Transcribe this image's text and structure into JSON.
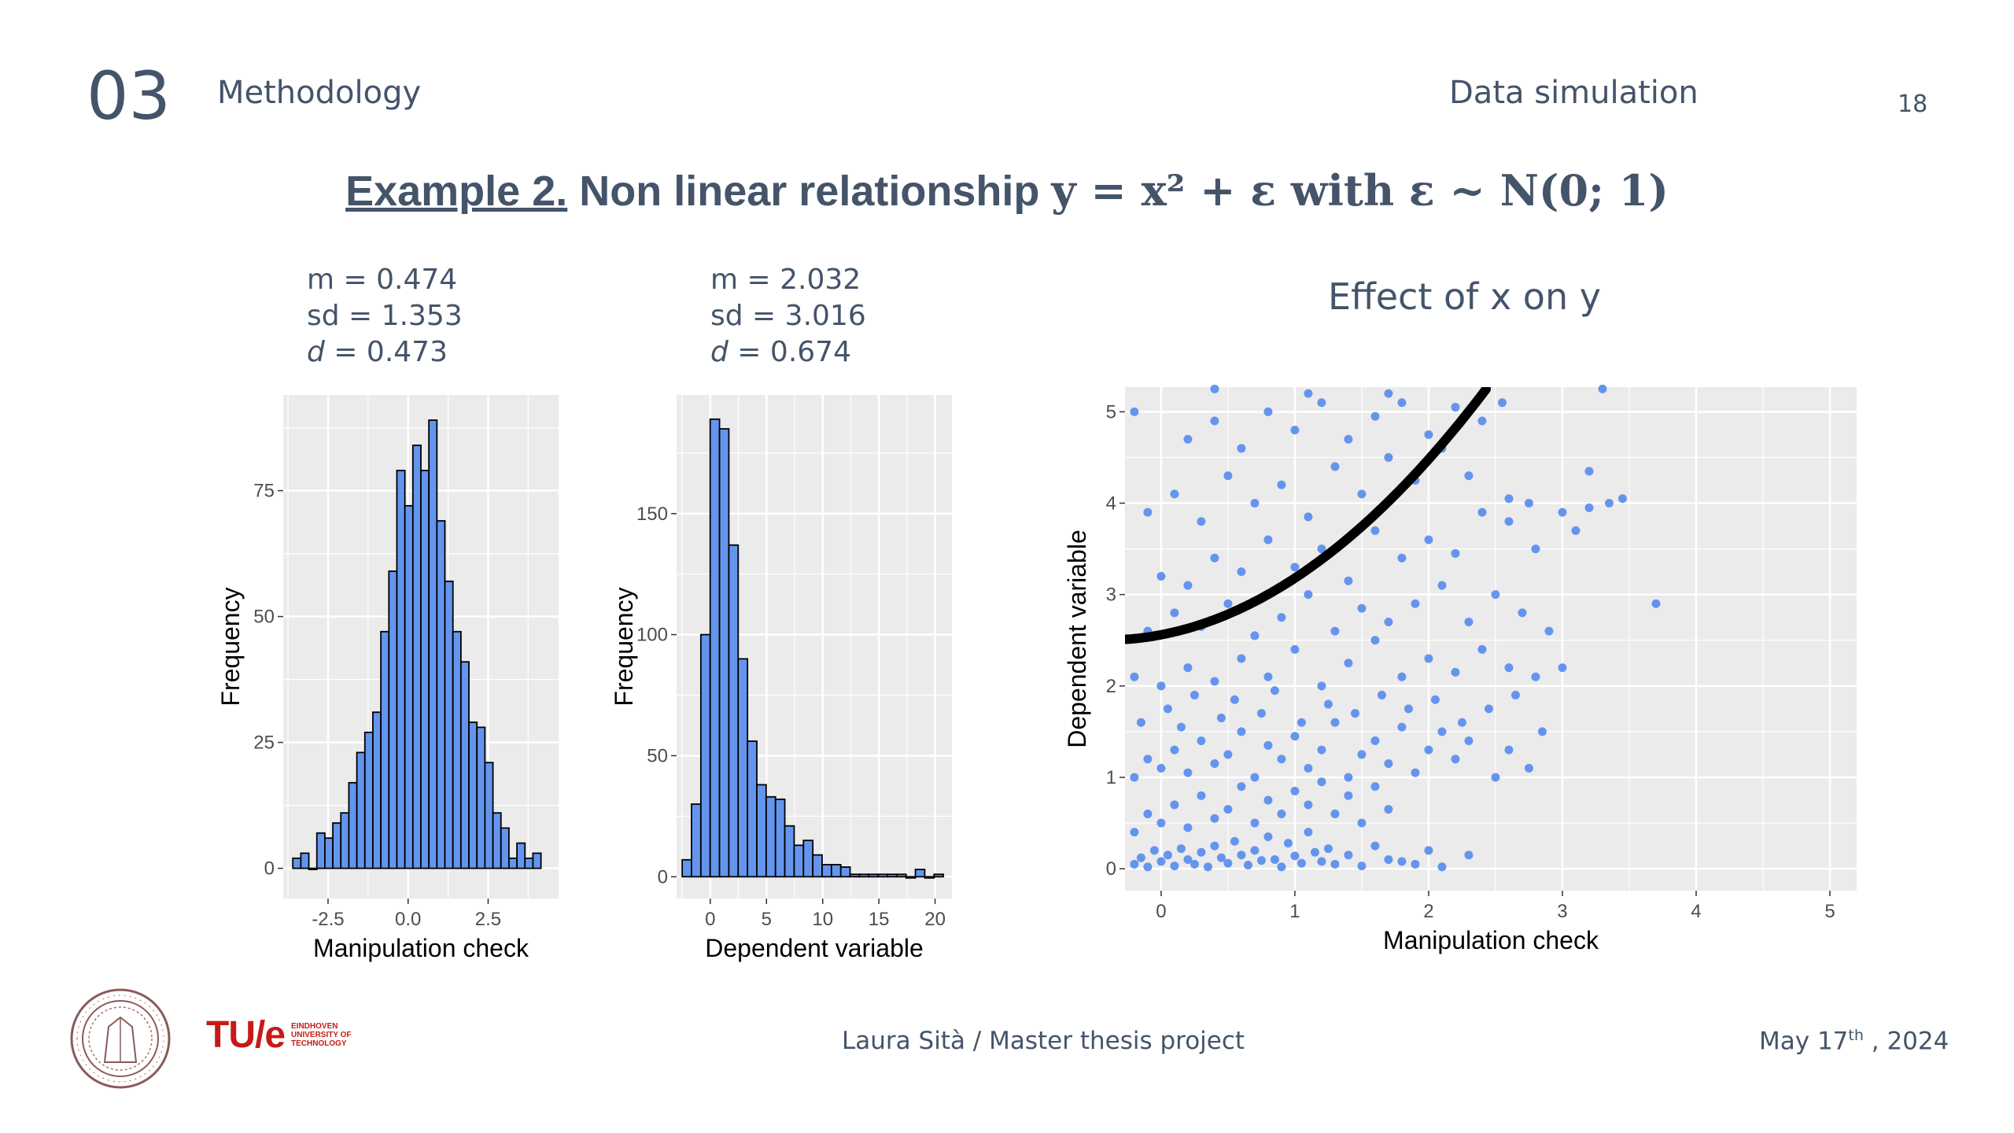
{
  "header": {
    "section_number": "03",
    "section_title": "Methodology",
    "subtitle": "Data simulation",
    "page_number": "18"
  },
  "heading": {
    "lead": "Example 2.",
    "text": "Non linear relationship",
    "formula": "y = x² + ε with ε ~ N(0; 1)"
  },
  "stats_left": {
    "m": "m = 0.474",
    "sd": "sd = 1.353",
    "d_label": "d",
    "d_value": " = 0.473"
  },
  "stats_mid": {
    "m": "m = 2.032",
    "sd": "sd = 3.016",
    "d_label": "d",
    "d_value": " =  0.674"
  },
  "scatter_title": "Effect of x on y",
  "footer": {
    "author": "Laura Sità / Master thesis project",
    "date_main": "May 17",
    "date_sup": "th",
    "date_year": " , 2024"
  },
  "logos": {
    "tue_mark": "TU/e",
    "tue_line1": "EINDHOVEN",
    "tue_line2": "UNIVERSITY OF",
    "tue_line3": "TECHNOLOGY"
  },
  "colors": {
    "fill": "#6495ed",
    "panel": "#ebebeb",
    "curve": "#000000",
    "text": "#44546a"
  },
  "chart_data": [
    {
      "type": "bar",
      "subtype": "histogram",
      "xlabel": "Manipulation check",
      "ylabel": "Frequency",
      "x_ticks": [
        "-2.5",
        "0.0",
        "2.5"
      ],
      "y_ticks": [
        "0",
        "25",
        "50",
        "75"
      ],
      "xlim": [
        -3.9,
        4.7
      ],
      "ylim": [
        -6,
        94
      ],
      "bin_start": -3.6,
      "bin_width": 0.25,
      "values": [
        2,
        3,
        0,
        7,
        6,
        9,
        11,
        17,
        23,
        27,
        31,
        47,
        59,
        79,
        72,
        84,
        79,
        89,
        69,
        57,
        47,
        41,
        29,
        28,
        21,
        11,
        8,
        2,
        5,
        2,
        3
      ]
    },
    {
      "type": "bar",
      "subtype": "histogram",
      "xlabel": "Dependent variable",
      "ylabel": "Frequency",
      "x_ticks": [
        "0",
        "5",
        "10",
        "15",
        "20"
      ],
      "y_ticks": [
        "0",
        "50",
        "100",
        "150"
      ],
      "xlim": [
        -3,
        21.5
      ],
      "ylim": [
        -9,
        199
      ],
      "bin_start": -2.5,
      "bin_width": 0.83,
      "values": [
        7,
        30,
        100,
        189,
        185,
        137,
        90,
        56,
        38,
        33,
        32,
        21,
        13,
        15,
        9,
        5,
        5,
        4,
        1,
        1,
        1,
        1,
        1,
        1,
        0,
        3,
        0,
        1
      ]
    },
    {
      "type": "scatter",
      "xlabel": "Manipulation check",
      "ylabel": "Dependent variable",
      "x_ticks": [
        "0",
        "1",
        "2",
        "3",
        "4",
        "5"
      ],
      "y_ticks": [
        "0",
        "1",
        "2",
        "3",
        "4",
        "5"
      ],
      "xlim": [
        -0.27,
        5.2
      ],
      "ylim": [
        -0.24,
        5.27
      ],
      "curve": {
        "a": 2.56,
        "b": 0.28,
        "c": 0.34
      },
      "points": [
        [
          -0.2,
          0.05
        ],
        [
          -0.15,
          0.12
        ],
        [
          -0.1,
          0.02
        ],
        [
          -0.05,
          0.2
        ],
        [
          0.0,
          0.08
        ],
        [
          0.05,
          0.15
        ],
        [
          0.1,
          0.03
        ],
        [
          0.15,
          0.22
        ],
        [
          0.2,
          0.1
        ],
        [
          0.25,
          0.05
        ],
        [
          0.3,
          0.18
        ],
        [
          0.35,
          0.02
        ],
        [
          0.4,
          0.25
        ],
        [
          0.45,
          0.12
        ],
        [
          0.5,
          0.06
        ],
        [
          0.55,
          0.3
        ],
        [
          0.6,
          0.15
        ],
        [
          0.65,
          0.04
        ],
        [
          0.7,
          0.2
        ],
        [
          0.75,
          0.09
        ],
        [
          0.8,
          0.35
        ],
        [
          0.85,
          0.1
        ],
        [
          0.9,
          0.02
        ],
        [
          0.95,
          0.28
        ],
        [
          1.0,
          0.14
        ],
        [
          1.05,
          0.06
        ],
        [
          1.1,
          0.4
        ],
        [
          1.15,
          0.18
        ],
        [
          1.2,
          0.08
        ],
        [
          1.25,
          0.22
        ],
        [
          1.3,
          0.05
        ],
        [
          1.4,
          0.15
        ],
        [
          1.5,
          0.03
        ],
        [
          1.6,
          0.25
        ],
        [
          1.7,
          0.1
        ],
        [
          1.8,
          0.08
        ],
        [
          1.9,
          0.05
        ],
        [
          2.0,
          0.2
        ],
        [
          2.1,
          0.02
        ],
        [
          2.3,
          0.15
        ],
        [
          -0.2,
          0.4
        ],
        [
          -0.1,
          0.6
        ],
        [
          0.0,
          0.5
        ],
        [
          0.1,
          0.7
        ],
        [
          0.2,
          0.45
        ],
        [
          0.3,
          0.8
        ],
        [
          0.4,
          0.55
        ],
        [
          0.5,
          0.65
        ],
        [
          0.6,
          0.9
        ],
        [
          0.7,
          0.5
        ],
        [
          0.8,
          0.75
        ],
        [
          0.9,
          0.6
        ],
        [
          1.0,
          0.85
        ],
        [
          1.1,
          0.7
        ],
        [
          1.2,
          0.95
        ],
        [
          1.3,
          0.6
        ],
        [
          1.4,
          0.8
        ],
        [
          1.5,
          0.5
        ],
        [
          1.6,
          0.9
        ],
        [
          1.7,
          0.65
        ],
        [
          -0.2,
          1.0
        ],
        [
          -0.1,
          1.2
        ],
        [
          0.0,
          1.1
        ],
        [
          0.1,
          1.3
        ],
        [
          0.2,
          1.05
        ],
        [
          0.3,
          1.4
        ],
        [
          0.4,
          1.15
        ],
        [
          0.5,
          1.25
        ],
        [
          0.6,
          1.5
        ],
        [
          0.7,
          1.0
        ],
        [
          0.8,
          1.35
        ],
        [
          0.9,
          1.2
        ],
        [
          1.0,
          1.45
        ],
        [
          1.1,
          1.1
        ],
        [
          1.2,
          1.3
        ],
        [
          1.3,
          1.6
        ],
        [
          1.4,
          1.0
        ],
        [
          1.5,
          1.25
        ],
        [
          1.6,
          1.4
        ],
        [
          1.7,
          1.15
        ],
        [
          1.8,
          1.55
        ],
        [
          1.9,
          1.05
        ],
        [
          2.0,
          1.3
        ],
        [
          2.1,
          1.5
        ],
        [
          2.2,
          1.2
        ],
        [
          2.3,
          1.4
        ],
        [
          2.5,
          1.0
        ],
        [
          2.6,
          1.3
        ],
        [
          2.75,
          1.1
        ],
        [
          -0.15,
          1.6
        ],
        [
          0.05,
          1.75
        ],
        [
          0.15,
          1.55
        ],
        [
          0.25,
          1.9
        ],
        [
          0.45,
          1.65
        ],
        [
          0.55,
          1.85
        ],
        [
          0.75,
          1.7
        ],
        [
          0.85,
          1.95
        ],
        [
          1.05,
          1.6
        ],
        [
          1.25,
          1.8
        ],
        [
          1.45,
          1.7
        ],
        [
          1.65,
          1.9
        ],
        [
          1.85,
          1.75
        ],
        [
          2.05,
          1.85
        ],
        [
          2.25,
          1.6
        ],
        [
          2.45,
          1.75
        ],
        [
          2.65,
          1.9
        ],
        [
          2.85,
          1.5
        ],
        [
          -0.2,
          2.1
        ],
        [
          0.0,
          2.0
        ],
        [
          0.2,
          2.2
        ],
        [
          0.4,
          2.05
        ],
        [
          0.6,
          2.3
        ],
        [
          0.8,
          2.1
        ],
        [
          1.0,
          2.4
        ],
        [
          1.2,
          2.0
        ],
        [
          1.4,
          2.25
        ],
        [
          1.6,
          2.5
        ],
        [
          1.8,
          2.1
        ],
        [
          2.0,
          2.3
        ],
        [
          2.2,
          2.15
        ],
        [
          2.4,
          2.4
        ],
        [
          2.6,
          2.2
        ],
        [
          2.8,
          2.1
        ],
        [
          3.0,
          2.2
        ],
        [
          -0.1,
          2.6
        ],
        [
          0.1,
          2.8
        ],
        [
          0.3,
          2.65
        ],
        [
          0.5,
          2.9
        ],
        [
          0.7,
          2.55
        ],
        [
          0.9,
          2.75
        ],
        [
          1.1,
          3.0
        ],
        [
          1.3,
          2.6
        ],
        [
          1.5,
          2.85
        ],
        [
          1.7,
          2.7
        ],
        [
          1.9,
          2.9
        ],
        [
          2.1,
          3.1
        ],
        [
          2.3,
          2.7
        ],
        [
          2.5,
          3.0
        ],
        [
          2.7,
          2.8
        ],
        [
          2.9,
          2.6
        ],
        [
          0.0,
          3.2
        ],
        [
          0.2,
          3.1
        ],
        [
          0.4,
          3.4
        ],
        [
          0.6,
          3.25
        ],
        [
          0.8,
          3.6
        ],
        [
          1.0,
          3.3
        ],
        [
          1.2,
          3.5
        ],
        [
          1.4,
          3.15
        ],
        [
          1.6,
          3.7
        ],
        [
          1.8,
          3.4
        ],
        [
          2.0,
          3.6
        ],
        [
          2.2,
          3.45
        ],
        [
          2.4,
          3.9
        ],
        [
          2.6,
          3.8
        ],
        [
          2.8,
          3.5
        ],
        [
          3.1,
          3.7
        ],
        [
          -0.1,
          3.9
        ],
        [
          0.1,
          4.1
        ],
        [
          0.3,
          3.8
        ],
        [
          0.5,
          4.3
        ],
        [
          0.7,
          4.0
        ],
        [
          0.9,
          4.2
        ],
        [
          1.1,
          3.85
        ],
        [
          1.3,
          4.4
        ],
        [
          1.5,
          4.1
        ],
        [
          1.7,
          4.5
        ],
        [
          1.9,
          4.25
        ],
        [
          2.1,
          4.6
        ],
        [
          2.3,
          4.3
        ],
        [
          2.6,
          4.05
        ],
        [
          3.2,
          3.95
        ],
        [
          3.35,
          4.0
        ],
        [
          3.45,
          4.05
        ],
        [
          3.7,
          2.9
        ],
        [
          3.2,
          4.35
        ],
        [
          0.2,
          4.7
        ],
        [
          0.4,
          4.9
        ],
        [
          0.6,
          4.6
        ],
        [
          0.8,
          5.0
        ],
        [
          1.0,
          4.8
        ],
        [
          1.2,
          5.1
        ],
        [
          1.4,
          4.7
        ],
        [
          1.6,
          4.95
        ],
        [
          1.8,
          5.1
        ],
        [
          2.0,
          4.75
        ],
        [
          2.2,
          5.05
        ],
        [
          2.4,
          4.9
        ],
        [
          0.4,
          5.25
        ],
        [
          1.1,
          5.2
        ],
        [
          3.3,
          5.25
        ],
        [
          -0.2,
          5.0
        ],
        [
          1.7,
          5.2
        ],
        [
          2.55,
          5.1
        ],
        [
          2.75,
          4.0
        ],
        [
          3.0,
          3.9
        ]
      ]
    }
  ]
}
